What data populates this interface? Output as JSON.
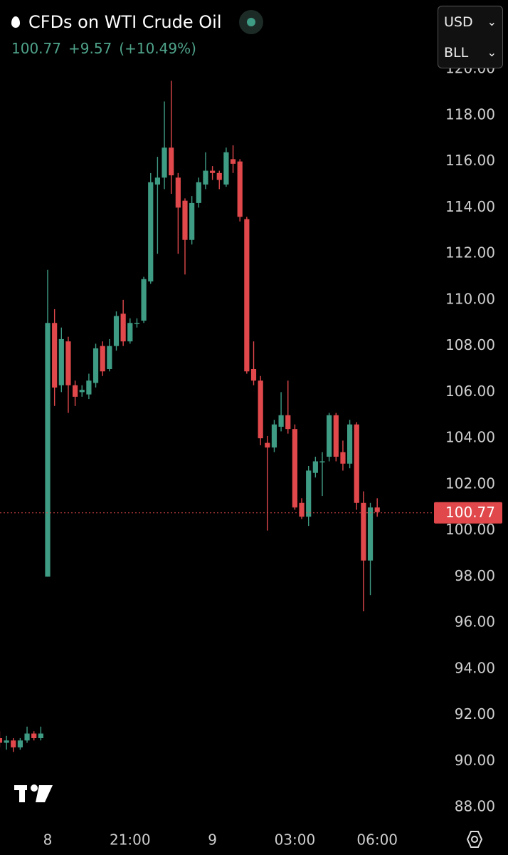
{
  "header": {
    "title": "CFDs on WTI Crude Oil",
    "last": "100.77",
    "change": "+9.57",
    "change_pct": "(+10.49%)"
  },
  "controls": {
    "currency": "USD",
    "unit": "BLL"
  },
  "chart_data": {
    "type": "candlestick",
    "up_color": "#3f9c84",
    "down_color": "#e0484b",
    "categories": [
      null,
      null,
      null,
      null,
      null,
      null,
      null,
      "8",
      null,
      null,
      null,
      null,
      null,
      null,
      null,
      null,
      null,
      null,
      null,
      "21:00",
      null,
      null,
      null,
      null,
      null,
      null,
      null,
      null,
      null,
      null,
      null,
      "9",
      null,
      null,
      null,
      null,
      null,
      null,
      null,
      null,
      null,
      null,
      null,
      "03:00",
      null,
      null,
      null,
      null,
      null,
      null,
      null,
      null,
      null,
      null,
      null,
      "06:00"
    ],
    "open": [
      91.0,
      90.8,
      90.9,
      90.6,
      90.9,
      91.2,
      91.0,
      98.0,
      109.0,
      106.3,
      108.2,
      106.3,
      106.0,
      105.9,
      106.4,
      108.0,
      107.0,
      108.0,
      109.4,
      108.2,
      109.0,
      109.1,
      110.8,
      115.0,
      115.3,
      116.6,
      115.3,
      114.3,
      112.6,
      114.2,
      115.0,
      115.6,
      115.5,
      115.0,
      116.1,
      116.0,
      113.5,
      107.0,
      106.5,
      103.8,
      103.6,
      104.5,
      105.0,
      104.4,
      101.2,
      100.6,
      102.5,
      103.0,
      103.2,
      105.0,
      103.4,
      102.9,
      104.6,
      101.2,
      98.7,
      101.0
    ],
    "high": [
      91.3,
      91.1,
      91.0,
      91.0,
      91.5,
      91.3,
      91.5,
      111.3,
      109.6,
      108.8,
      108.4,
      106.5,
      106.3,
      106.8,
      108.1,
      108.2,
      108.3,
      109.5,
      110.0,
      109.2,
      109.2,
      111.0,
      115.5,
      116.2,
      118.6,
      119.5,
      115.5,
      114.4,
      114.5,
      115.3,
      116.4,
      115.8,
      115.6,
      116.6,
      116.7,
      116.1,
      113.6,
      108.2,
      106.7,
      104.1,
      104.8,
      106.0,
      106.5,
      104.6,
      101.4,
      102.8,
      103.2,
      103.4,
      105.1,
      105.1,
      103.9,
      104.8,
      104.7,
      101.7,
      101.2,
      101.4
    ],
    "low": [
      90.6,
      90.5,
      90.4,
      90.5,
      90.8,
      90.9,
      90.9,
      98.0,
      105.4,
      106.0,
      105.1,
      105.4,
      105.8,
      105.7,
      106.2,
      106.7,
      106.9,
      107.8,
      108.0,
      108.1,
      108.8,
      109.0,
      110.7,
      112.0,
      114.8,
      114.6,
      112.0,
      111.1,
      112.4,
      114.0,
      114.8,
      115.2,
      114.8,
      114.9,
      115.5,
      113.4,
      106.8,
      106.3,
      103.7,
      100.0,
      103.4,
      104.3,
      104.2,
      100.9,
      100.5,
      100.2,
      102.3,
      101.5,
      103.0,
      103.0,
      102.6,
      102.7,
      100.9,
      96.5,
      97.2,
      100.6
    ],
    "close": [
      90.8,
      90.9,
      90.6,
      90.9,
      91.2,
      91.0,
      91.2,
      109.0,
      106.2,
      108.3,
      106.3,
      105.8,
      106.1,
      106.5,
      107.9,
      106.9,
      108.0,
      109.3,
      108.2,
      109.0,
      109.0,
      110.9,
      115.1,
      115.3,
      116.6,
      115.4,
      114.0,
      112.6,
      114.2,
      115.1,
      115.6,
      115.5,
      115.2,
      116.4,
      115.9,
      113.6,
      106.9,
      106.5,
      104.0,
      103.6,
      104.6,
      105.0,
      104.4,
      101.0,
      100.6,
      102.6,
      103.0,
      103.0,
      105.0,
      103.2,
      102.9,
      104.6,
      101.2,
      98.7,
      101.0,
      100.8
    ],
    "last_price": 100.77,
    "ylim": [
      87.17,
      123.0
    ],
    "yticks": [
      {
        "value": 88,
        "label": "88.00"
      },
      {
        "value": 90,
        "label": "90.00"
      },
      {
        "value": 92,
        "label": "92.00"
      },
      {
        "value": 94,
        "label": "94.00"
      },
      {
        "value": 96,
        "label": "96.00"
      },
      {
        "value": 98,
        "label": "98.00"
      },
      {
        "value": 100,
        "label": "100.00"
      },
      {
        "value": 102,
        "label": "102.00"
      },
      {
        "value": 104,
        "label": "104.00"
      },
      {
        "value": 106,
        "label": "106.00"
      },
      {
        "value": 108,
        "label": "108.00"
      },
      {
        "value": 110,
        "label": "110.00"
      },
      {
        "value": 112,
        "label": "112.00"
      },
      {
        "value": 114,
        "label": "114.00"
      },
      {
        "value": 116,
        "label": "116.00"
      },
      {
        "value": 118,
        "label": "118.00"
      },
      {
        "value": 120,
        "label": "120.00"
      }
    ]
  }
}
